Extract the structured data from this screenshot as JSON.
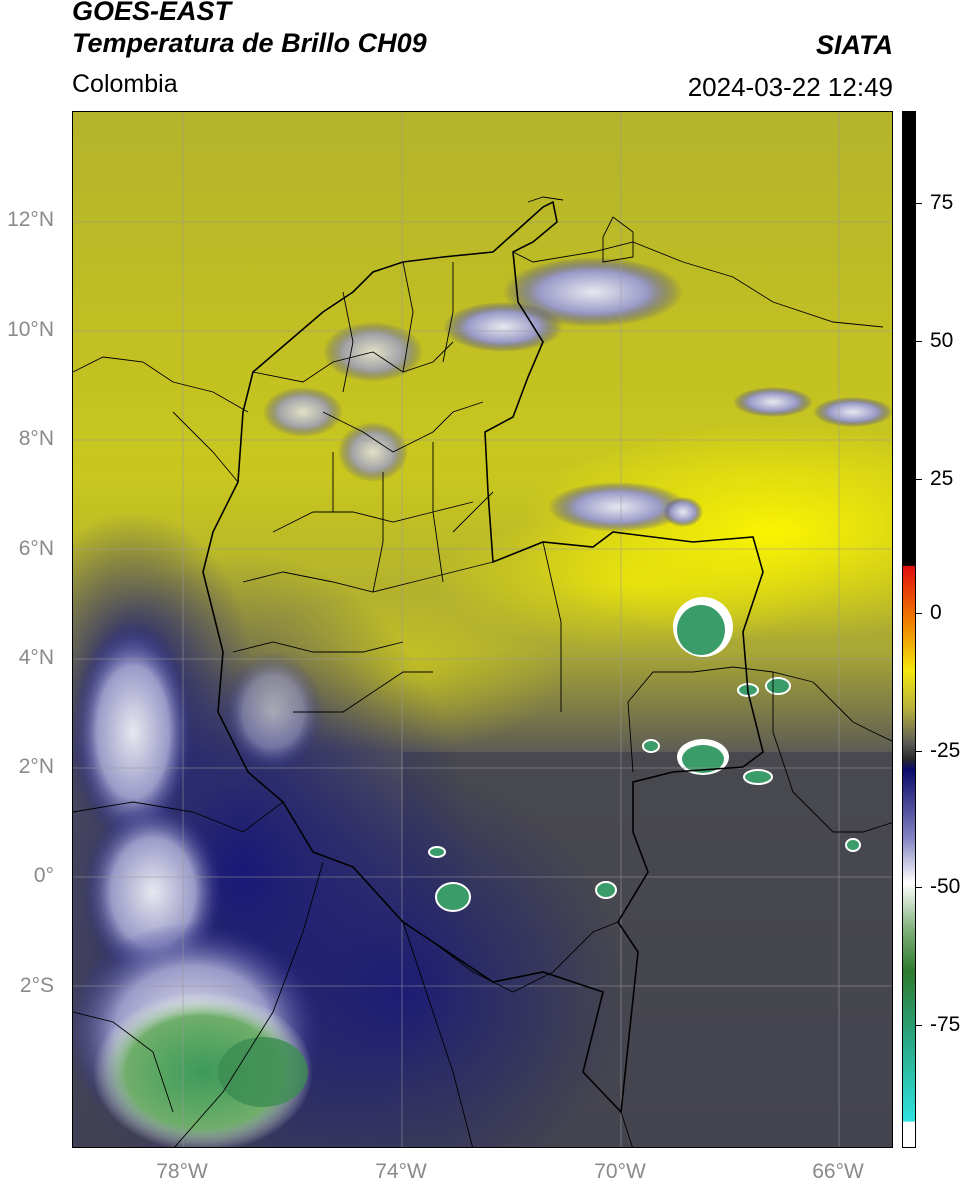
{
  "header": {
    "line1": "GOES-EAST",
    "line2": "Temperatura de Brillo CH09",
    "region": "Colombia",
    "brand": "SIATA",
    "datetime": "2024-03-22 12:49"
  },
  "axes": {
    "lat_labels": [
      "12°N",
      "10°N",
      "8°N",
      "6°N",
      "4°N",
      "2°N",
      "0°",
      "2°S"
    ],
    "lon_labels": [
      "78°W",
      "74°W",
      "70°W",
      "66°W"
    ]
  },
  "colorbar": {
    "ticks": [
      "75",
      "50",
      "25",
      "0",
      "-25",
      "-50",
      "-75"
    ],
    "colors": {
      "warm_yellow": "#e8e612",
      "olive": "#8c8a33",
      "dark_gray": "#4a4a4e",
      "navy": "#1a1a80",
      "white": "#ffffff",
      "green": "#3c9a3c",
      "teal": "#2fd1c0",
      "red": "#e01010",
      "black": "#000000"
    }
  }
}
